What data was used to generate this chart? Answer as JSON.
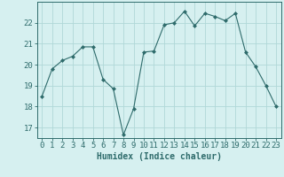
{
  "x": [
    0,
    1,
    2,
    3,
    4,
    5,
    6,
    7,
    8,
    9,
    10,
    11,
    12,
    13,
    14,
    15,
    16,
    17,
    18,
    19,
    20,
    21,
    22,
    23
  ],
  "y": [
    18.5,
    19.8,
    20.2,
    20.4,
    20.85,
    20.85,
    19.3,
    18.85,
    16.65,
    17.9,
    20.6,
    20.65,
    21.9,
    22.0,
    22.55,
    21.85,
    22.45,
    22.3,
    22.1,
    22.45,
    20.6,
    19.9,
    19.0,
    18.0
  ],
  "xlim": [
    -0.5,
    23.5
  ],
  "ylim": [
    16.5,
    23.0
  ],
  "yticks": [
    17,
    18,
    19,
    20,
    21,
    22
  ],
  "xticks": [
    0,
    1,
    2,
    3,
    4,
    5,
    6,
    7,
    8,
    9,
    10,
    11,
    12,
    13,
    14,
    15,
    16,
    17,
    18,
    19,
    20,
    21,
    22,
    23
  ],
  "xlabel": "Humidex (Indice chaleur)",
  "line_color": "#2e6b6b",
  "marker": "D",
  "marker_size": 2.0,
  "bg_color": "#d6f0f0",
  "grid_color": "#b0d8d8",
  "axis_color": "#2e6b6b",
  "tick_color": "#2e6b6b",
  "label_fontsize": 7,
  "tick_fontsize": 6.5
}
